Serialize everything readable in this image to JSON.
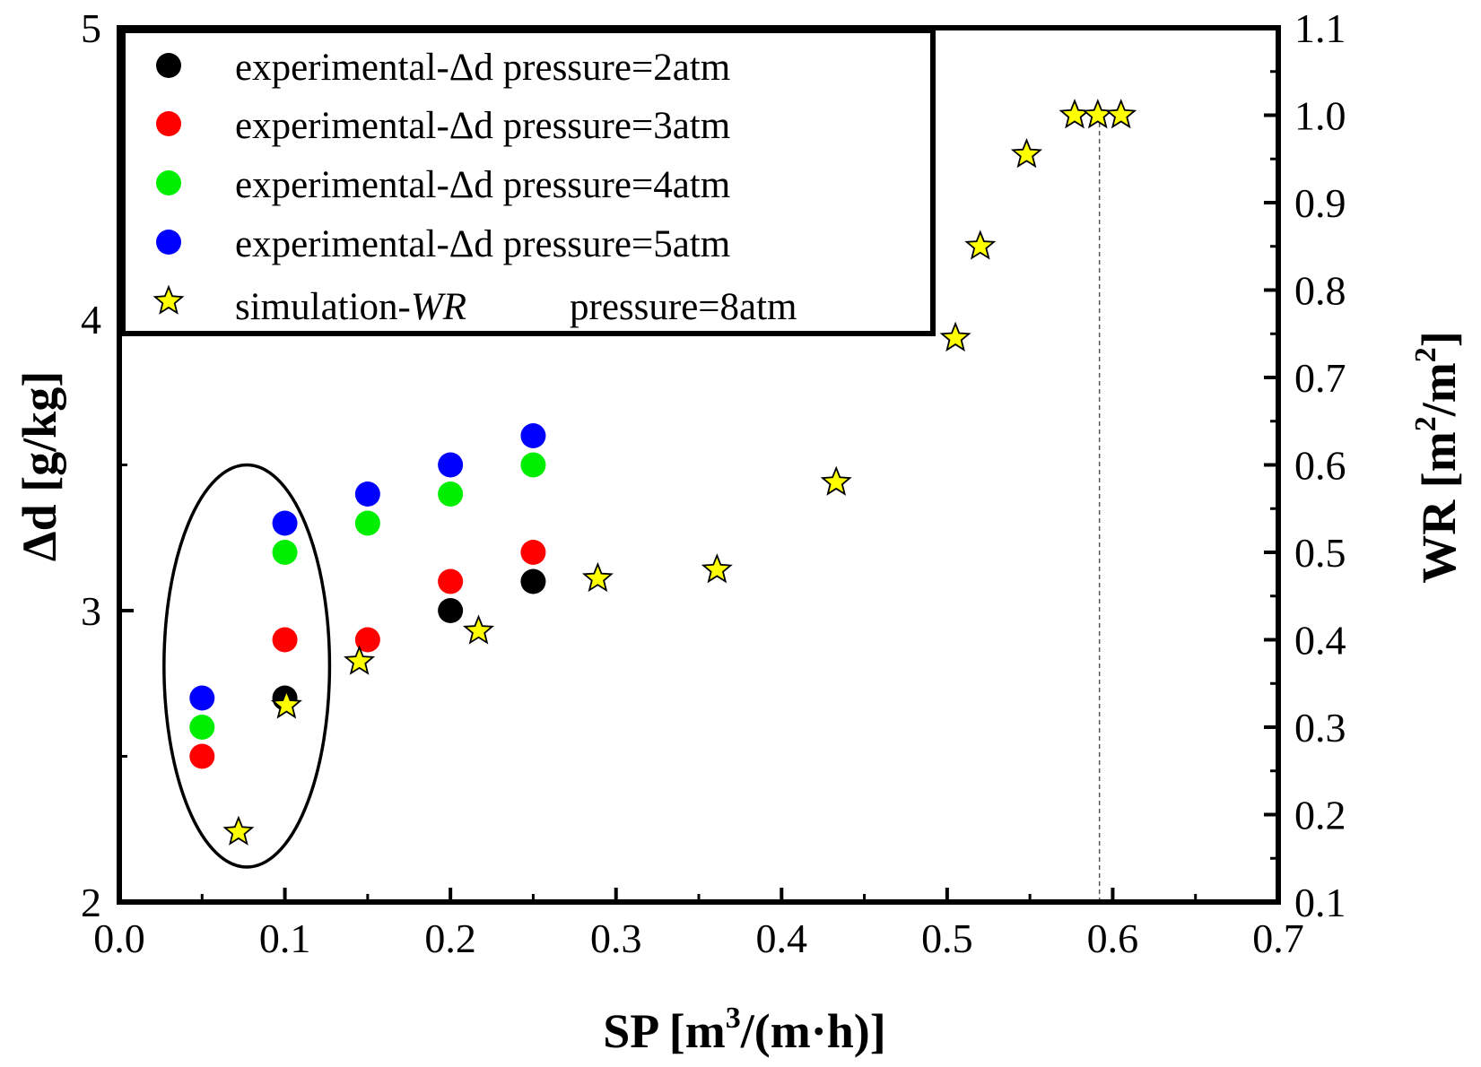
{
  "chart_data": {
    "type": "scatter",
    "x_axis": {
      "label_main": "SP [m",
      "label_sup": "3",
      "label_end": "/(m·h)]",
      "range": [
        0.0,
        0.7
      ],
      "ticks": [
        "0.0",
        "0.1",
        "0.2",
        "0.3",
        "0.4",
        "0.5",
        "0.6",
        "0.7"
      ]
    },
    "y_left_axis": {
      "label": "Δd [g/kg]",
      "range": [
        2,
        5
      ],
      "ticks": [
        "2",
        "3",
        "4",
        "5"
      ]
    },
    "y_right_axis": {
      "label_main": "WR [m",
      "label_sup1": "2",
      "label_mid": "/m",
      "label_sup2": "2",
      "label_end": "]",
      "range": [
        0.1,
        1.1
      ],
      "ticks": [
        "0.1",
        "0.2",
        "0.3",
        "0.4",
        "0.5",
        "0.6",
        "0.7",
        "0.8",
        "0.9",
        "1.0",
        "1.1"
      ]
    },
    "series": [
      {
        "name": "experimental-Δd pressure=2atm",
        "axis": "left",
        "marker": "circle",
        "color": "#000000",
        "x": [
          0.1,
          0.2,
          0.25
        ],
        "y": [
          2.7,
          3.0,
          3.1
        ]
      },
      {
        "name": "experimental-Δd pressure=3atm",
        "axis": "left",
        "marker": "circle",
        "color": "#ff0000",
        "x": [
          0.05,
          0.1,
          0.15,
          0.2,
          0.25
        ],
        "y": [
          2.5,
          2.9,
          2.9,
          3.1,
          3.2
        ]
      },
      {
        "name": "experimental-Δd pressure=4atm",
        "axis": "left",
        "marker": "circle",
        "color": "#00ee00",
        "x": [
          0.05,
          0.1,
          0.15,
          0.2,
          0.25
        ],
        "y": [
          2.6,
          3.2,
          3.3,
          3.4,
          3.5
        ]
      },
      {
        "name": "experimental-Δd pressure=5atm",
        "axis": "left",
        "marker": "circle",
        "color": "#0000ff",
        "x": [
          0.05,
          0.1,
          0.15,
          0.2,
          0.25
        ],
        "y": [
          2.7,
          3.3,
          3.4,
          3.5,
          3.6
        ]
      },
      {
        "name": "simulation-WR pressure=8atm",
        "axis": "right",
        "marker": "star",
        "color": "#ffff00",
        "x": [
          0.072,
          0.101,
          0.145,
          0.217,
          0.289,
          0.361,
          0.433,
          0.505,
          0.52,
          0.548,
          0.577,
          0.591,
          0.605
        ],
        "y": [
          0.18,
          0.325,
          0.375,
          0.41,
          0.47,
          0.48,
          0.58,
          0.745,
          0.85,
          0.955,
          1.0,
          1.0,
          1.0
        ]
      }
    ],
    "legend": {
      "position": "top-left",
      "entries": [
        {
          "text": "experimental-Δd pressure=2atm"
        },
        {
          "text": "experimental-Δd pressure=3atm"
        },
        {
          "text": "experimental-Δd pressure=4atm"
        },
        {
          "text": "experimental-Δd pressure=5atm"
        },
        {
          "text_prefix": "simulation-",
          "text_italic": "WR",
          "text_suffix": "pressure=8atm"
        }
      ]
    },
    "annotations": {
      "ellipse_center": {
        "x": 0.077,
        "y": 2.81
      },
      "ellipse_semi_axes": {
        "x": 0.05,
        "y": 0.69
      },
      "dashed_vertical_line": {
        "x": 0.592,
        "y_from_right": 0.1,
        "y_to_right": 1.0
      }
    }
  }
}
